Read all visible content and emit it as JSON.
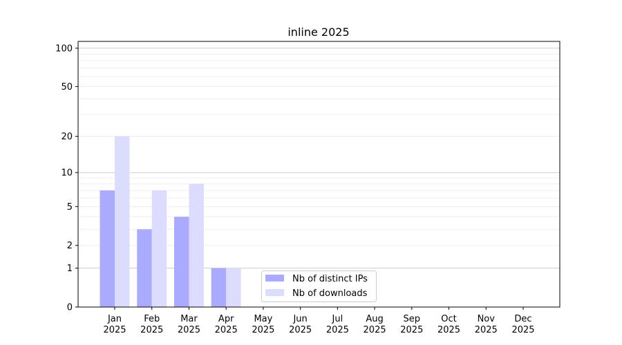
{
  "chart_data": {
    "type": "bar",
    "title": "inline 2025",
    "xlabel": "",
    "ylabel": "",
    "yscale": "log(1+x)",
    "ylim": [
      0,
      113
    ],
    "yticks": [
      0,
      1,
      2,
      5,
      10,
      20,
      50,
      100
    ],
    "grid": true,
    "legend_placement": "lower-center",
    "categories": [
      "Jan\n2025",
      "Feb\n2025",
      "Mar\n2025",
      "Apr\n2025",
      "May\n2025",
      "Jun\n2025",
      "Jul\n2025",
      "Aug\n2025",
      "Sep\n2025",
      "Oct\n2025",
      "Nov\n2025",
      "Dec\n2025"
    ],
    "series": [
      {
        "name": "Nb of distinct IPs",
        "color": "#aaaaff",
        "values": [
          7,
          3,
          4,
          1,
          0,
          0,
          0,
          0,
          0,
          0,
          0,
          0
        ]
      },
      {
        "name": "Nb of downloads",
        "color": "#dcdcff",
        "values": [
          20,
          7,
          8,
          1,
          0,
          0,
          0,
          0,
          0,
          0,
          0,
          0
        ]
      }
    ]
  }
}
